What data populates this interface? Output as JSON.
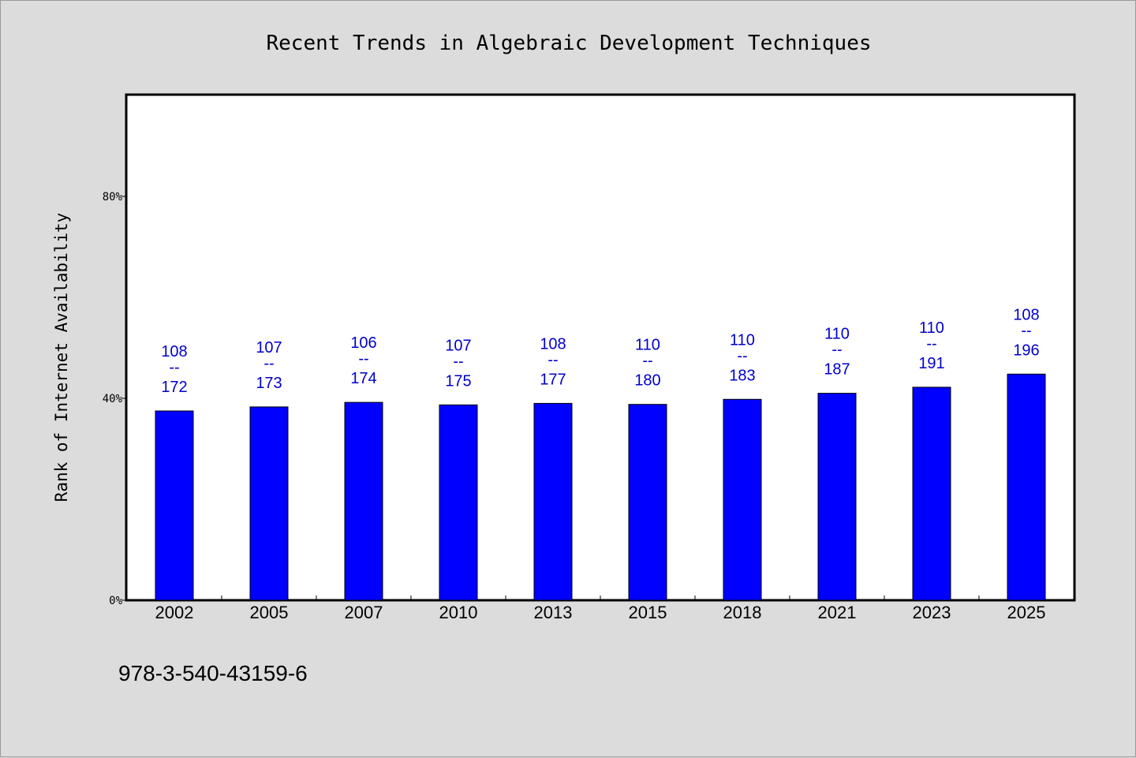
{
  "chart_data": {
    "type": "bar",
    "title": "Recent Trends in Algebraic Development Techniques",
    "xlabel": "",
    "ylabel": "Rank of Internet Availability",
    "categories": [
      "2002",
      "2005",
      "2007",
      "2010",
      "2013",
      "2015",
      "2018",
      "2021",
      "2023",
      "2025"
    ],
    "values": [
      37.5,
      38.3,
      39.2,
      38.7,
      39.0,
      38.8,
      39.8,
      41.0,
      42.2,
      44.8
    ],
    "data_labels": [
      {
        "top": "108",
        "mid": "--",
        "bottom": "172"
      },
      {
        "top": "107",
        "mid": "--",
        "bottom": "173"
      },
      {
        "top": "106",
        "mid": "--",
        "bottom": "174"
      },
      {
        "top": "107",
        "mid": "--",
        "bottom": "175"
      },
      {
        "top": "108",
        "mid": "--",
        "bottom": "177"
      },
      {
        "top": "110",
        "mid": "--",
        "bottom": "180"
      },
      {
        "top": "110",
        "mid": "--",
        "bottom": "183"
      },
      {
        "top": "110",
        "mid": "--",
        "bottom": "187"
      },
      {
        "top": "110",
        "mid": "--",
        "bottom": "191"
      },
      {
        "top": "108",
        "mid": "--",
        "bottom": "196"
      }
    ],
    "yticks": [
      0,
      40,
      80
    ],
    "ytick_labels": [
      "0%",
      "40%",
      "80%"
    ],
    "ylim": [
      0,
      100
    ],
    "grid": false,
    "legend": "none",
    "colors": {
      "bar": "#0000ff",
      "bar_outline": "#000000",
      "data_label": "#0000cc",
      "plot_background": "#ffffff",
      "page_background": "#dcdcdc"
    }
  },
  "footer": {
    "isbn": "978-3-540-43159-6"
  }
}
